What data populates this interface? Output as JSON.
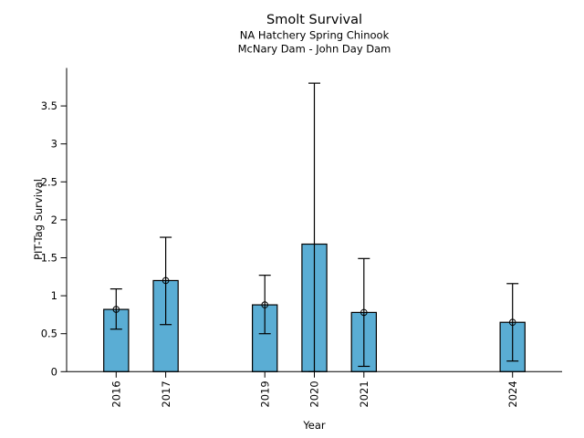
{
  "chart_data": {
    "type": "bar",
    "title": "Smolt Survival",
    "subtitle_line1": "NA Hatchery Spring Chinook",
    "subtitle_line2": "McNary Dam - John Day Dam",
    "xlabel": "Year",
    "ylabel": "PIT-Tag Survival",
    "xlim": [
      2015,
      2025
    ],
    "ylim": [
      0,
      4.0
    ],
    "ytick_values": [
      0,
      0.5,
      1,
      1.5,
      2,
      2.5,
      3,
      3.5
    ],
    "ytick_labels": [
      "0",
      "0.5",
      "1",
      "1.5",
      "2",
      "2.5",
      "3",
      "3.5"
    ],
    "grid": false,
    "legend": null,
    "bar_color": "#5aadd4",
    "edge_color": "#000000",
    "error_bar_color": "#000000",
    "categories": [
      "2016",
      "2017",
      "2019",
      "2020",
      "2021",
      "2024"
    ],
    "values": [
      0.82,
      1.2,
      0.88,
      1.68,
      0.78,
      0.65
    ],
    "points": [
      {
        "year": 2016,
        "label": "2016",
        "value": 0.82,
        "ci_low": 0.56,
        "ci_high": 1.09,
        "marker": true
      },
      {
        "year": 2017,
        "label": "2017",
        "value": 1.2,
        "ci_low": 0.62,
        "ci_high": 1.77,
        "marker": true
      },
      {
        "year": 2019,
        "label": "2019",
        "value": 0.88,
        "ci_low": 0.5,
        "ci_high": 1.27,
        "marker": true
      },
      {
        "year": 2020,
        "label": "2020",
        "value": 1.68,
        "ci_low": 0.0,
        "ci_high": 3.8,
        "marker": false
      },
      {
        "year": 2021,
        "label": "2021",
        "value": 0.78,
        "ci_low": 0.07,
        "ci_high": 1.49,
        "marker": true
      },
      {
        "year": 2024,
        "label": "2024",
        "value": 0.65,
        "ci_low": 0.14,
        "ci_high": 1.16,
        "marker": true
      }
    ]
  }
}
